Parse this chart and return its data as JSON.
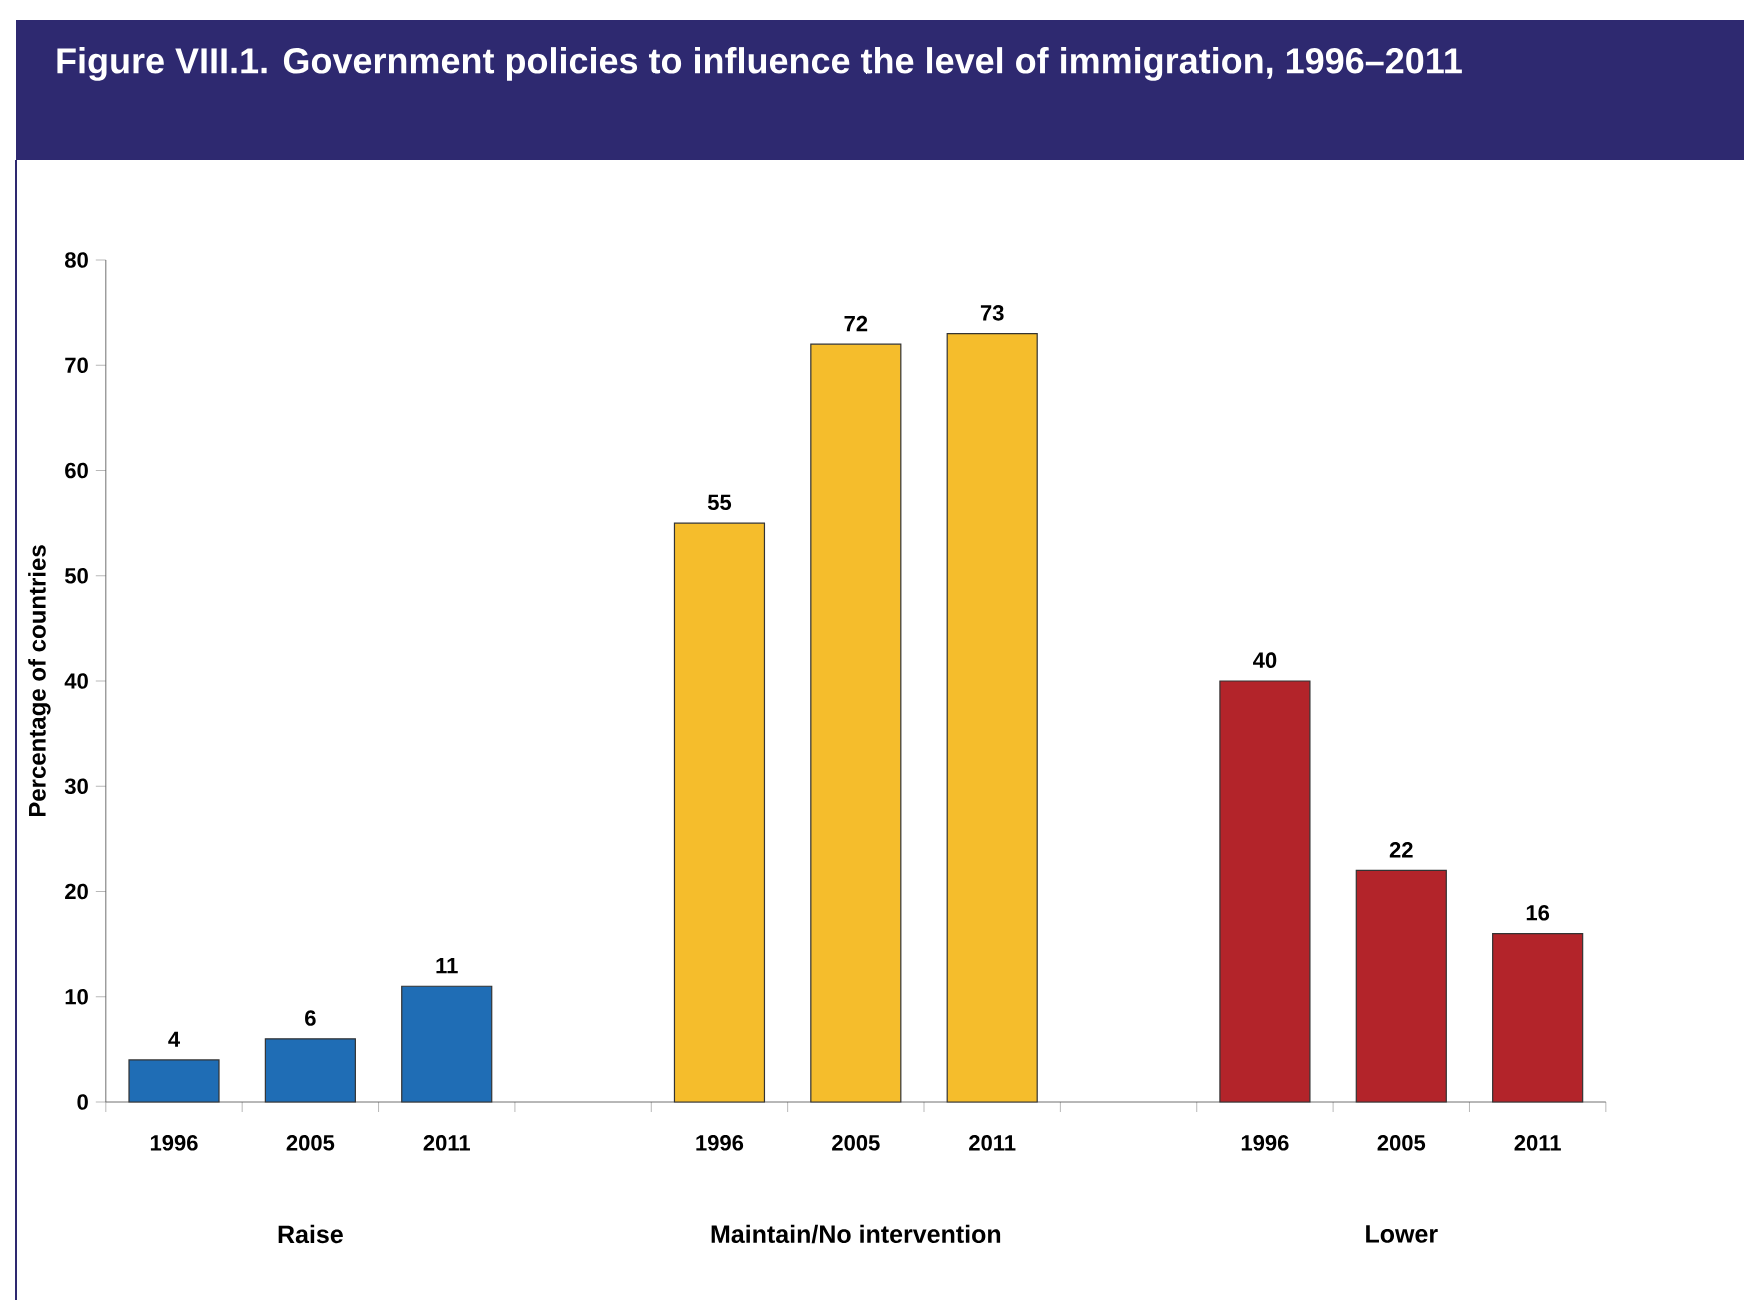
{
  "chart_data": {
    "type": "bar",
    "title": "Figure VIII.1. Government policies to influence the level of immigration, 1996–2011",
    "ylabel": "Percentage of countries",
    "categories": [
      "1996",
      "2005",
      "2011",
      null,
      "1996",
      "2005",
      "2011",
      null,
      "1996",
      "2005",
      "2011"
    ],
    "values": [
      4,
      6,
      11,
      null,
      55,
      72,
      73,
      null,
      40,
      22,
      16
    ],
    "colors": [
      "#1f6db5",
      "#1f6db5",
      "#1f6db5",
      null,
      "#f5bd2c",
      "#f5bd2c",
      "#f5bd2c",
      null,
      "#b3242a",
      "#b3242a",
      "#b3242a"
    ],
    "ylim": [
      0,
      80
    ],
    "yticks": [
      0,
      10,
      20,
      30,
      40,
      50,
      60,
      70,
      80
    ],
    "data_labels": true,
    "grid": false,
    "annotations": [
      "Raise",
      "Maintain/No intervention",
      "Lower"
    ]
  }
}
